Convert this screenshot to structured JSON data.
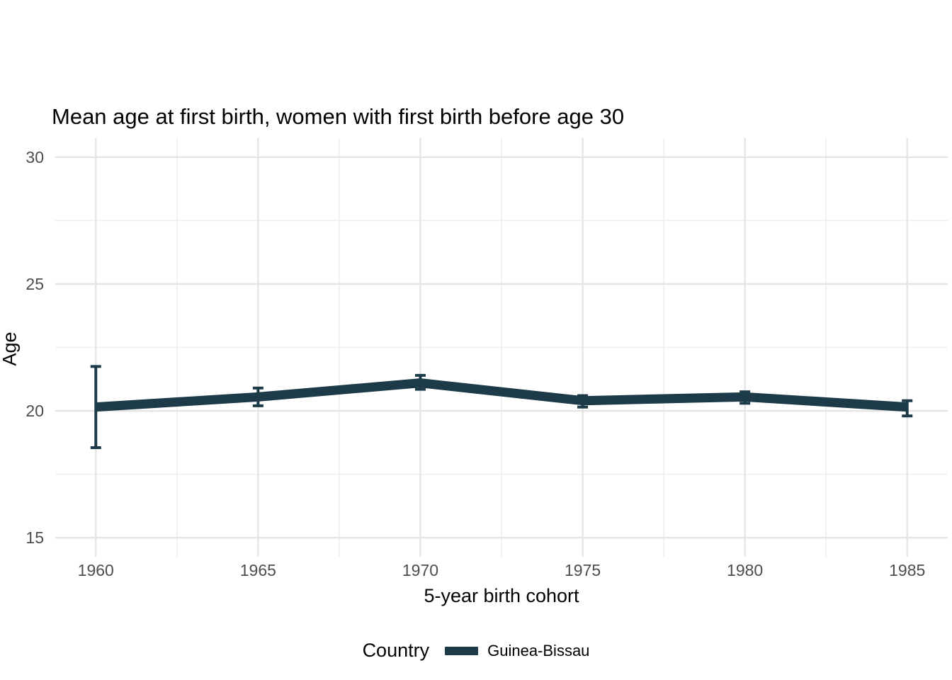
{
  "chart_data": {
    "type": "line",
    "title": "Mean age at first birth, women with first birth before age 30",
    "xlabel": "5-year birth cohort",
    "ylabel": "Age",
    "x": [
      1960,
      1965,
      1970,
      1975,
      1980,
      1985
    ],
    "series": [
      {
        "name": "Guinea-Bissau",
        "values": [
          20.15,
          20.55,
          21.1,
          20.4,
          20.55,
          20.15
        ],
        "ci_lower": [
          18.55,
          20.2,
          20.85,
          20.15,
          20.3,
          19.8
        ],
        "ci_upper": [
          21.75,
          20.9,
          21.4,
          20.6,
          20.75,
          20.4
        ],
        "color": "#1c3a48"
      }
    ],
    "x_ticks": [
      "1960",
      "1965",
      "1970",
      "1975",
      "1980",
      "1985"
    ],
    "x_tick_values": [
      1960,
      1965,
      1970,
      1975,
      1980,
      1985
    ],
    "x_minor": [
      1962.5,
      1967.5,
      1972.5,
      1977.5,
      1982.5
    ],
    "y_ticks": [
      "15",
      "20",
      "25",
      "30"
    ],
    "y_tick_values": [
      15,
      20,
      25,
      30
    ],
    "y_minor": [
      17.5,
      22.5,
      27.5
    ],
    "xlim": [
      1958.75,
      1986.25
    ],
    "ylim": [
      14.25,
      30.75
    ],
    "grid": "major+minor",
    "legend_position": "bottom",
    "legend_title": "Country",
    "colors": {
      "background": "#ffffff",
      "grid_major": "#e4e4e4",
      "grid_minor": "#efefef",
      "tick_label": "#4d4d4d",
      "text": "#000000"
    }
  }
}
